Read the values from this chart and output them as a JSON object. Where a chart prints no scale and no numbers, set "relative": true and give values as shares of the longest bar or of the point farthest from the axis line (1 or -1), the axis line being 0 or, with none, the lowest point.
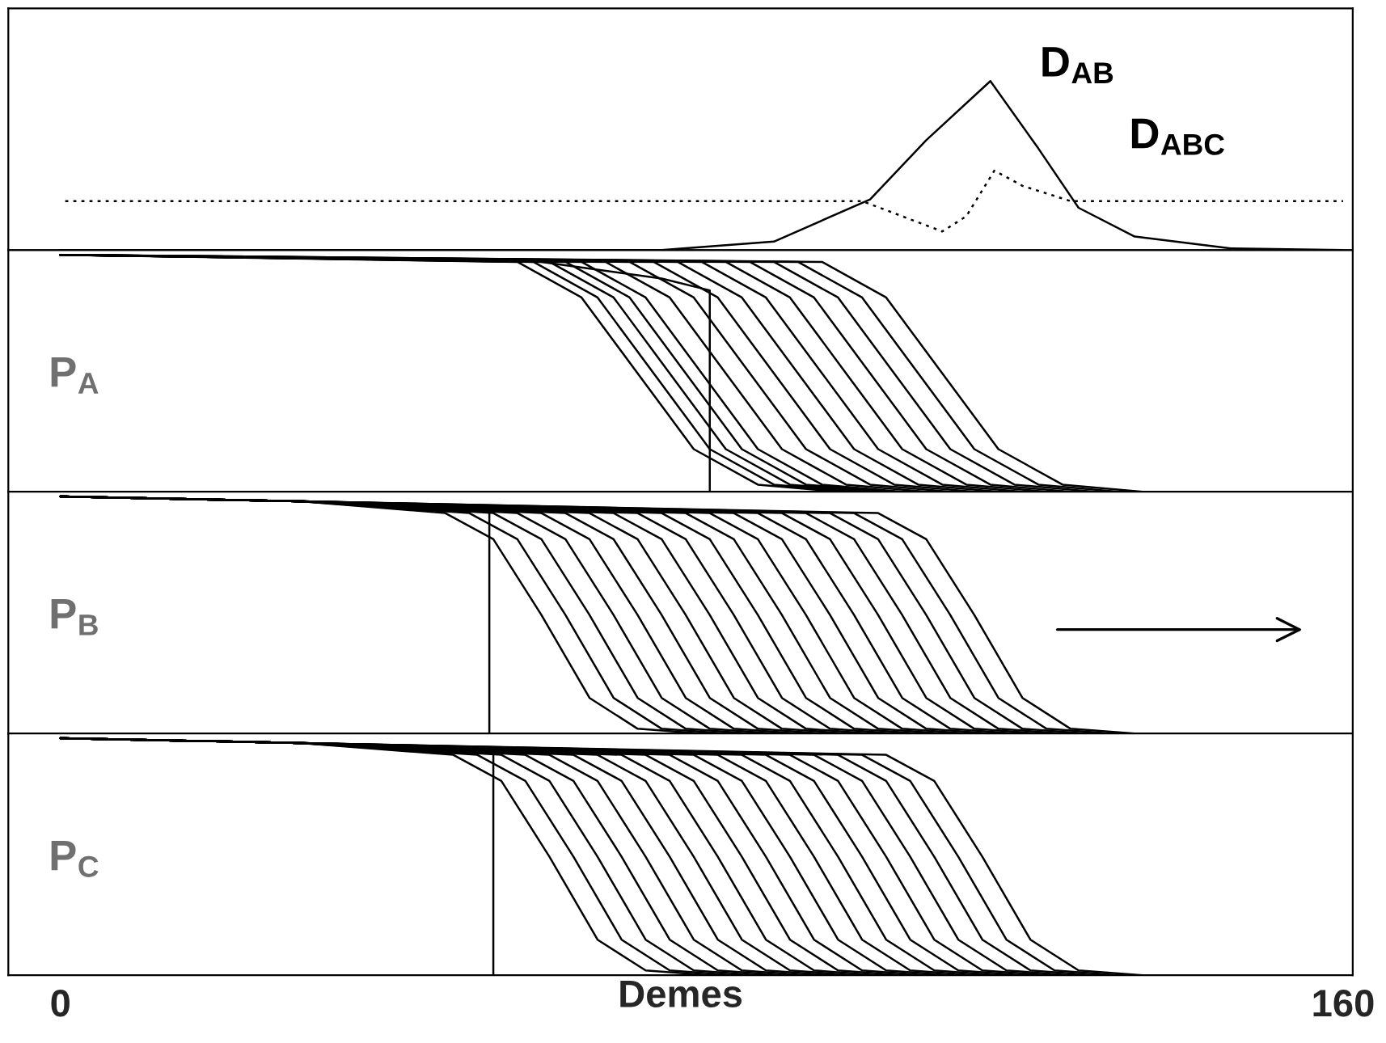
{
  "chart_data": [
    {
      "type": "line",
      "relative": true,
      "xlim": [
        -6.5,
        161.2
      ],
      "tick_labels": false,
      "legend": false,
      "series": [
        {
          "name": "D$_{AB}$",
          "color": "#000000",
          "line_style": "solid",
          "x": [
            0,
            75,
            89,
            101,
            108,
            116,
            122,
            127,
            134,
            146,
            160
          ],
          "values": [
            0,
            0,
            0.05,
            0.3,
            0.65,
            1,
            0.6,
            0.25,
            0.08,
            0.01,
            0
          ]
        },
        {
          "name": "D$_{ABC}$",
          "color": "#000000",
          "line_style": "dotted",
          "x": [
            0.6,
            100,
            110,
            113,
            116.5,
            120,
            126,
            160
          ],
          "values": [
            0.29,
            0.29,
            0.11,
            0.2,
            0.47,
            0.38,
            0.29,
            0.29
          ]
        }
      ]
    },
    {
      "type": "line",
      "relative": true,
      "xlim": [
        -6.5,
        161.2
      ],
      "tick_labels": false,
      "annotations": [
        "P$_{A}$"
      ],
      "series": [
        {
          "color": "#000000",
          "x": [
            0,
            60,
            75,
            81,
            81
          ],
          "values": [
            1,
            0.97,
            0.9,
            0.85,
            0
          ]
        },
        {
          "color": "#000000",
          "x": [
            0,
            57,
            65,
            72,
            79,
            87,
            97
          ],
          "values": [
            1,
            0.97,
            0.82,
            0.5,
            0.18,
            0.03,
            0
          ]
        },
        {
          "color": "#000000",
          "x": [
            0,
            59,
            67,
            74,
            81,
            89,
            99
          ],
          "values": [
            1,
            0.97,
            0.82,
            0.5,
            0.18,
            0.03,
            0
          ]
        },
        {
          "color": "#000000",
          "x": [
            0,
            61,
            69,
            76,
            83,
            91,
            101
          ],
          "values": [
            1,
            0.97,
            0.82,
            0.5,
            0.18,
            0.03,
            0
          ]
        },
        {
          "color": "#000000",
          "x": [
            0,
            63,
            71,
            78,
            85,
            93,
            103
          ],
          "values": [
            1,
            0.97,
            0.82,
            0.5,
            0.18,
            0.03,
            0
          ]
        },
        {
          "color": "#000000",
          "x": [
            0,
            65,
            73,
            80,
            87,
            95,
            105
          ],
          "values": [
            1,
            0.97,
            0.82,
            0.5,
            0.18,
            0.03,
            0
          ]
        },
        {
          "color": "#000000",
          "x": [
            0,
            68,
            76,
            83,
            90,
            98,
            108
          ],
          "values": [
            1,
            0.97,
            0.82,
            0.5,
            0.18,
            0.03,
            0
          ]
        },
        {
          "color": "#000000",
          "x": [
            0,
            71,
            79,
            86,
            93,
            101,
            111
          ],
          "values": [
            1,
            0.97,
            0.82,
            0.5,
            0.18,
            0.03,
            0
          ]
        },
        {
          "color": "#000000",
          "x": [
            0,
            74,
            82,
            89,
            96,
            104,
            114
          ],
          "values": [
            1,
            0.97,
            0.82,
            0.5,
            0.18,
            0.03,
            0
          ]
        },
        {
          "color": "#000000",
          "x": [
            0,
            77,
            85,
            92,
            99,
            107,
            117
          ],
          "values": [
            1,
            0.97,
            0.82,
            0.5,
            0.18,
            0.03,
            0
          ]
        },
        {
          "color": "#000000",
          "x": [
            0,
            80,
            88,
            95,
            102,
            110,
            120
          ],
          "values": [
            1,
            0.97,
            0.82,
            0.5,
            0.18,
            0.03,
            0
          ]
        },
        {
          "color": "#000000",
          "x": [
            0,
            83,
            91,
            98,
            105,
            113,
            123
          ],
          "values": [
            1,
            0.97,
            0.82,
            0.5,
            0.18,
            0.03,
            0
          ]
        },
        {
          "color": "#000000",
          "x": [
            0,
            86,
            94,
            101,
            108,
            116,
            126
          ],
          "values": [
            1,
            0.97,
            0.82,
            0.5,
            0.18,
            0.03,
            0
          ]
        },
        {
          "color": "#000000",
          "x": [
            0,
            89,
            97,
            104,
            111,
            119,
            129
          ],
          "values": [
            1,
            0.97,
            0.82,
            0.5,
            0.18,
            0.03,
            0
          ]
        },
        {
          "color": "#000000",
          "x": [
            0,
            92,
            100,
            107,
            114,
            122,
            132
          ],
          "values": [
            1,
            0.97,
            0.82,
            0.5,
            0.18,
            0.03,
            0
          ]
        },
        {
          "color": "#000000",
          "x": [
            0,
            95,
            103,
            110,
            117,
            125,
            135
          ],
          "values": [
            1,
            0.97,
            0.82,
            0.5,
            0.18,
            0.03,
            0
          ]
        }
      ]
    },
    {
      "type": "line",
      "relative": true,
      "xlim": [
        -6.5,
        161.2
      ],
      "tick_labels": false,
      "annotations": [
        "P$_{B}$"
      ],
      "series": [
        {
          "color": "#000000",
          "x": [
            0,
            30,
            53.5,
            53.5
          ],
          "values": [
            1,
            0.98,
            0.94,
            0
          ]
        },
        {
          "color": "#000000",
          "x": [
            0,
            30,
            48,
            54,
            60,
            66,
            72,
            80
          ],
          "values": [
            1,
            0.98,
            0.93,
            0.82,
            0.5,
            0.15,
            0.02,
            0
          ]
        },
        {
          "color": "#000000",
          "x": [
            0,
            30,
            51,
            57,
            63,
            69,
            75,
            83
          ],
          "values": [
            1,
            0.98,
            0.93,
            0.82,
            0.5,
            0.15,
            0.02,
            0
          ]
        },
        {
          "color": "#000000",
          "x": [
            0,
            30,
            54,
            60,
            66,
            72,
            78,
            86
          ],
          "values": [
            1,
            0.98,
            0.93,
            0.82,
            0.5,
            0.15,
            0.02,
            0
          ]
        },
        {
          "color": "#000000",
          "x": [
            0,
            30,
            57,
            63,
            69,
            75,
            81,
            89
          ],
          "values": [
            1,
            0.98,
            0.93,
            0.82,
            0.5,
            0.15,
            0.02,
            0
          ]
        },
        {
          "color": "#000000",
          "x": [
            0,
            30,
            60,
            66,
            72,
            78,
            84,
            92
          ],
          "values": [
            1,
            0.98,
            0.93,
            0.82,
            0.5,
            0.15,
            0.02,
            0
          ]
        },
        {
          "color": "#000000",
          "x": [
            0,
            30,
            63,
            69,
            75,
            81,
            87,
            95
          ],
          "values": [
            1,
            0.98,
            0.93,
            0.82,
            0.5,
            0.15,
            0.02,
            0
          ]
        },
        {
          "color": "#000000",
          "x": [
            0,
            30,
            66,
            72,
            78,
            84,
            90,
            98
          ],
          "values": [
            1,
            0.98,
            0.93,
            0.82,
            0.5,
            0.15,
            0.02,
            0
          ]
        },
        {
          "color": "#000000",
          "x": [
            0,
            30,
            69,
            75,
            81,
            87,
            93,
            101
          ],
          "values": [
            1,
            0.98,
            0.93,
            0.82,
            0.5,
            0.15,
            0.02,
            0
          ]
        },
        {
          "color": "#000000",
          "x": [
            0,
            30,
            72,
            78,
            84,
            90,
            96,
            104
          ],
          "values": [
            1,
            0.98,
            0.93,
            0.82,
            0.5,
            0.15,
            0.02,
            0
          ]
        },
        {
          "color": "#000000",
          "x": [
            0,
            30,
            75,
            81,
            87,
            93,
            99,
            107
          ],
          "values": [
            1,
            0.98,
            0.93,
            0.82,
            0.5,
            0.15,
            0.02,
            0
          ]
        },
        {
          "color": "#000000",
          "x": [
            0,
            30,
            78,
            84,
            90,
            96,
            102,
            110
          ],
          "values": [
            1,
            0.98,
            0.93,
            0.82,
            0.5,
            0.15,
            0.02,
            0
          ]
        },
        {
          "color": "#000000",
          "x": [
            0,
            30,
            81,
            87,
            93,
            99,
            105,
            113
          ],
          "values": [
            1,
            0.98,
            0.93,
            0.82,
            0.5,
            0.15,
            0.02,
            0
          ]
        },
        {
          "color": "#000000",
          "x": [
            0,
            30,
            84,
            90,
            96,
            102,
            108,
            116
          ],
          "values": [
            1,
            0.98,
            0.93,
            0.82,
            0.5,
            0.15,
            0.02,
            0
          ]
        },
        {
          "color": "#000000",
          "x": [
            0,
            30,
            87,
            93,
            99,
            105,
            111,
            119
          ],
          "values": [
            1,
            0.98,
            0.93,
            0.82,
            0.5,
            0.15,
            0.02,
            0
          ]
        },
        {
          "color": "#000000",
          "x": [
            0,
            30,
            90,
            96,
            102,
            108,
            114,
            122
          ],
          "values": [
            1,
            0.98,
            0.93,
            0.82,
            0.5,
            0.15,
            0.02,
            0
          ]
        },
        {
          "color": "#000000",
          "x": [
            0,
            30,
            93,
            99,
            105,
            111,
            117,
            125
          ],
          "values": [
            1,
            0.98,
            0.93,
            0.82,
            0.5,
            0.15,
            0.02,
            0
          ]
        },
        {
          "color": "#000000",
          "x": [
            0,
            30,
            96,
            102,
            108,
            114,
            120,
            128
          ],
          "values": [
            1,
            0.98,
            0.93,
            0.82,
            0.5,
            0.15,
            0.02,
            0
          ]
        },
        {
          "color": "#000000",
          "x": [
            0,
            30,
            99,
            105,
            111,
            117,
            123,
            131
          ],
          "values": [
            1,
            0.98,
            0.93,
            0.82,
            0.5,
            0.15,
            0.02,
            0
          ]
        },
        {
          "color": "#000000",
          "x": [
            0,
            30,
            102,
            108,
            114,
            120,
            126,
            134
          ],
          "values": [
            1,
            0.98,
            0.93,
            0.82,
            0.5,
            0.15,
            0.02,
            0
          ]
        }
      ]
    },
    {
      "type": "line",
      "relative": true,
      "xlim": [
        -6.5,
        161.2
      ],
      "xticks": [
        0,
        160
      ],
      "xlabel": "Demes",
      "tick_labels": "x",
      "annotations": [
        "P$_{C}$"
      ],
      "series": [
        {
          "color": "#000000",
          "x": [
            0,
            30,
            54,
            54
          ],
          "values": [
            1,
            0.98,
            0.94,
            0
          ]
        },
        {
          "color": "#000000",
          "x": [
            0,
            30,
            49,
            55,
            61,
            67,
            73,
            81
          ],
          "values": [
            1,
            0.98,
            0.93,
            0.82,
            0.5,
            0.15,
            0.02,
            0
          ]
        },
        {
          "color": "#000000",
          "x": [
            0,
            30,
            52,
            58,
            64,
            70,
            76,
            84
          ],
          "values": [
            1,
            0.98,
            0.93,
            0.82,
            0.5,
            0.15,
            0.02,
            0
          ]
        },
        {
          "color": "#000000",
          "x": [
            0,
            30,
            55,
            61,
            67,
            73,
            79,
            87
          ],
          "values": [
            1,
            0.98,
            0.93,
            0.82,
            0.5,
            0.15,
            0.02,
            0
          ]
        },
        {
          "color": "#000000",
          "x": [
            0,
            30,
            58,
            64,
            70,
            76,
            82,
            90
          ],
          "values": [
            1,
            0.98,
            0.93,
            0.82,
            0.5,
            0.15,
            0.02,
            0
          ]
        },
        {
          "color": "#000000",
          "x": [
            0,
            30,
            61,
            67,
            73,
            79,
            85,
            93
          ],
          "values": [
            1,
            0.98,
            0.93,
            0.82,
            0.5,
            0.15,
            0.02,
            0
          ]
        },
        {
          "color": "#000000",
          "x": [
            0,
            30,
            64,
            70,
            76,
            82,
            88,
            96
          ],
          "values": [
            1,
            0.98,
            0.93,
            0.82,
            0.5,
            0.15,
            0.02,
            0
          ]
        },
        {
          "color": "#000000",
          "x": [
            0,
            30,
            67,
            73,
            79,
            85,
            91,
            99
          ],
          "values": [
            1,
            0.98,
            0.93,
            0.82,
            0.5,
            0.15,
            0.02,
            0
          ]
        },
        {
          "color": "#000000",
          "x": [
            0,
            30,
            70,
            76,
            82,
            88,
            94,
            102
          ],
          "values": [
            1,
            0.98,
            0.93,
            0.82,
            0.5,
            0.15,
            0.02,
            0
          ]
        },
        {
          "color": "#000000",
          "x": [
            0,
            30,
            73,
            79,
            85,
            91,
            97,
            105
          ],
          "values": [
            1,
            0.98,
            0.93,
            0.82,
            0.5,
            0.15,
            0.02,
            0
          ]
        },
        {
          "color": "#000000",
          "x": [
            0,
            30,
            76,
            82,
            88,
            94,
            100,
            108
          ],
          "values": [
            1,
            0.98,
            0.93,
            0.82,
            0.5,
            0.15,
            0.02,
            0
          ]
        },
        {
          "color": "#000000",
          "x": [
            0,
            30,
            79,
            85,
            91,
            97,
            103,
            111
          ],
          "values": [
            1,
            0.98,
            0.93,
            0.82,
            0.5,
            0.15,
            0.02,
            0
          ]
        },
        {
          "color": "#000000",
          "x": [
            0,
            30,
            82,
            88,
            94,
            100,
            106,
            114
          ],
          "values": [
            1,
            0.98,
            0.93,
            0.82,
            0.5,
            0.15,
            0.02,
            0
          ]
        },
        {
          "color": "#000000",
          "x": [
            0,
            30,
            85,
            91,
            97,
            103,
            109,
            117
          ],
          "values": [
            1,
            0.98,
            0.93,
            0.82,
            0.5,
            0.15,
            0.02,
            0
          ]
        },
        {
          "color": "#000000",
          "x": [
            0,
            30,
            88,
            94,
            100,
            106,
            112,
            120
          ],
          "values": [
            1,
            0.98,
            0.93,
            0.82,
            0.5,
            0.15,
            0.02,
            0
          ]
        },
        {
          "color": "#000000",
          "x": [
            0,
            30,
            91,
            97,
            103,
            109,
            115,
            123
          ],
          "values": [
            1,
            0.98,
            0.93,
            0.82,
            0.5,
            0.15,
            0.02,
            0
          ]
        },
        {
          "color": "#000000",
          "x": [
            0,
            30,
            94,
            100,
            106,
            112,
            118,
            126
          ],
          "values": [
            1,
            0.98,
            0.93,
            0.82,
            0.5,
            0.15,
            0.02,
            0
          ]
        },
        {
          "color": "#000000",
          "x": [
            0,
            30,
            97,
            103,
            109,
            115,
            121,
            129
          ],
          "values": [
            1,
            0.98,
            0.93,
            0.82,
            0.5,
            0.15,
            0.02,
            0
          ]
        },
        {
          "color": "#000000",
          "x": [
            0,
            30,
            100,
            106,
            112,
            118,
            124,
            132
          ],
          "values": [
            1,
            0.98,
            0.93,
            0.82,
            0.5,
            0.15,
            0.02,
            0
          ]
        },
        {
          "color": "#000000",
          "x": [
            0,
            30,
            103,
            109,
            115,
            121,
            127,
            135
          ],
          "values": [
            1,
            0.98,
            0.93,
            0.82,
            0.5,
            0.15,
            0.02,
            0
          ]
        }
      ]
    }
  ]
}
